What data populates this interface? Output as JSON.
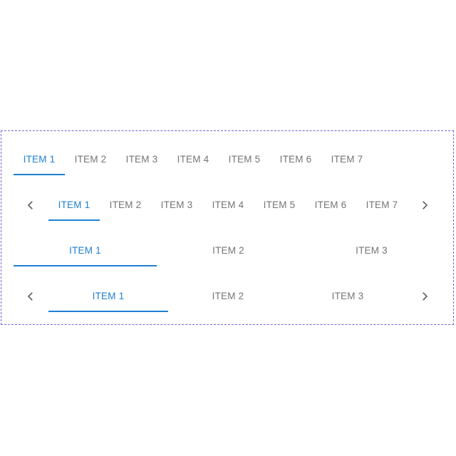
{
  "tabs_scrollable": {
    "items": [
      "ITEM 1",
      "ITEM 2",
      "ITEM 3",
      "ITEM 4",
      "ITEM 5",
      "ITEM 6",
      "ITEM 7"
    ],
    "selected": "ITEM 1"
  },
  "tabs_scrollable_arrows": {
    "items": [
      "ITEM 1",
      "ITEM 2",
      "ITEM 3",
      "ITEM 4",
      "ITEM 5",
      "ITEM 6",
      "ITEM 7"
    ],
    "selected": "ITEM 1",
    "prev_icon": "chevron-left-icon",
    "next_icon": "chevron-right-icon"
  },
  "tabs_fixed": {
    "items": [
      "ITEM 1",
      "ITEM 2",
      "ITEM 3"
    ],
    "selected": "ITEM 1"
  },
  "tabs_fixed_arrows": {
    "items": [
      "ITEM 1",
      "ITEM 2",
      "ITEM 3"
    ],
    "selected": "ITEM 1",
    "prev_icon": "chevron-left-icon",
    "next_icon": "chevron-right-icon"
  },
  "colors": {
    "accent": "#1e7fd2",
    "inactive_text": "#757575",
    "frame_border": "#7b61d6"
  }
}
